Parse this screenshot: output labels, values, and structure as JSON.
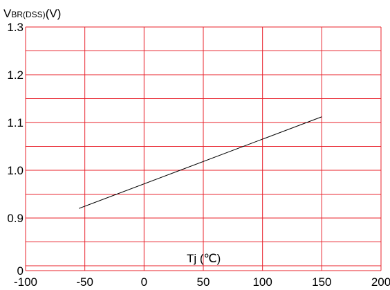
{
  "chart_data": {
    "type": "line",
    "ylabel_main": "V",
    "ylabel_sub": "BR(DSS)",
    "ylabel_unit": "(V)",
    "xlabel": "Tj (℃)",
    "x_ticks": [
      "-100",
      "-50",
      "0",
      "50",
      "100",
      "150",
      "200"
    ],
    "y_ticks": [
      "0",
      "0.9",
      "1.0",
      "1.1",
      "1.2",
      "1.3"
    ],
    "x_range": [
      -100,
      200
    ],
    "y_levels": [
      0.8,
      0.9,
      1.0,
      1.1,
      1.2,
      1.3
    ],
    "y_display_min": "0",
    "grid": true,
    "colors": {
      "grid": "#e8202a",
      "line": "#000000"
    },
    "series": [
      {
        "x": [
          -55,
          150
        ],
        "y": [
          0.92,
          1.112
        ]
      }
    ]
  }
}
